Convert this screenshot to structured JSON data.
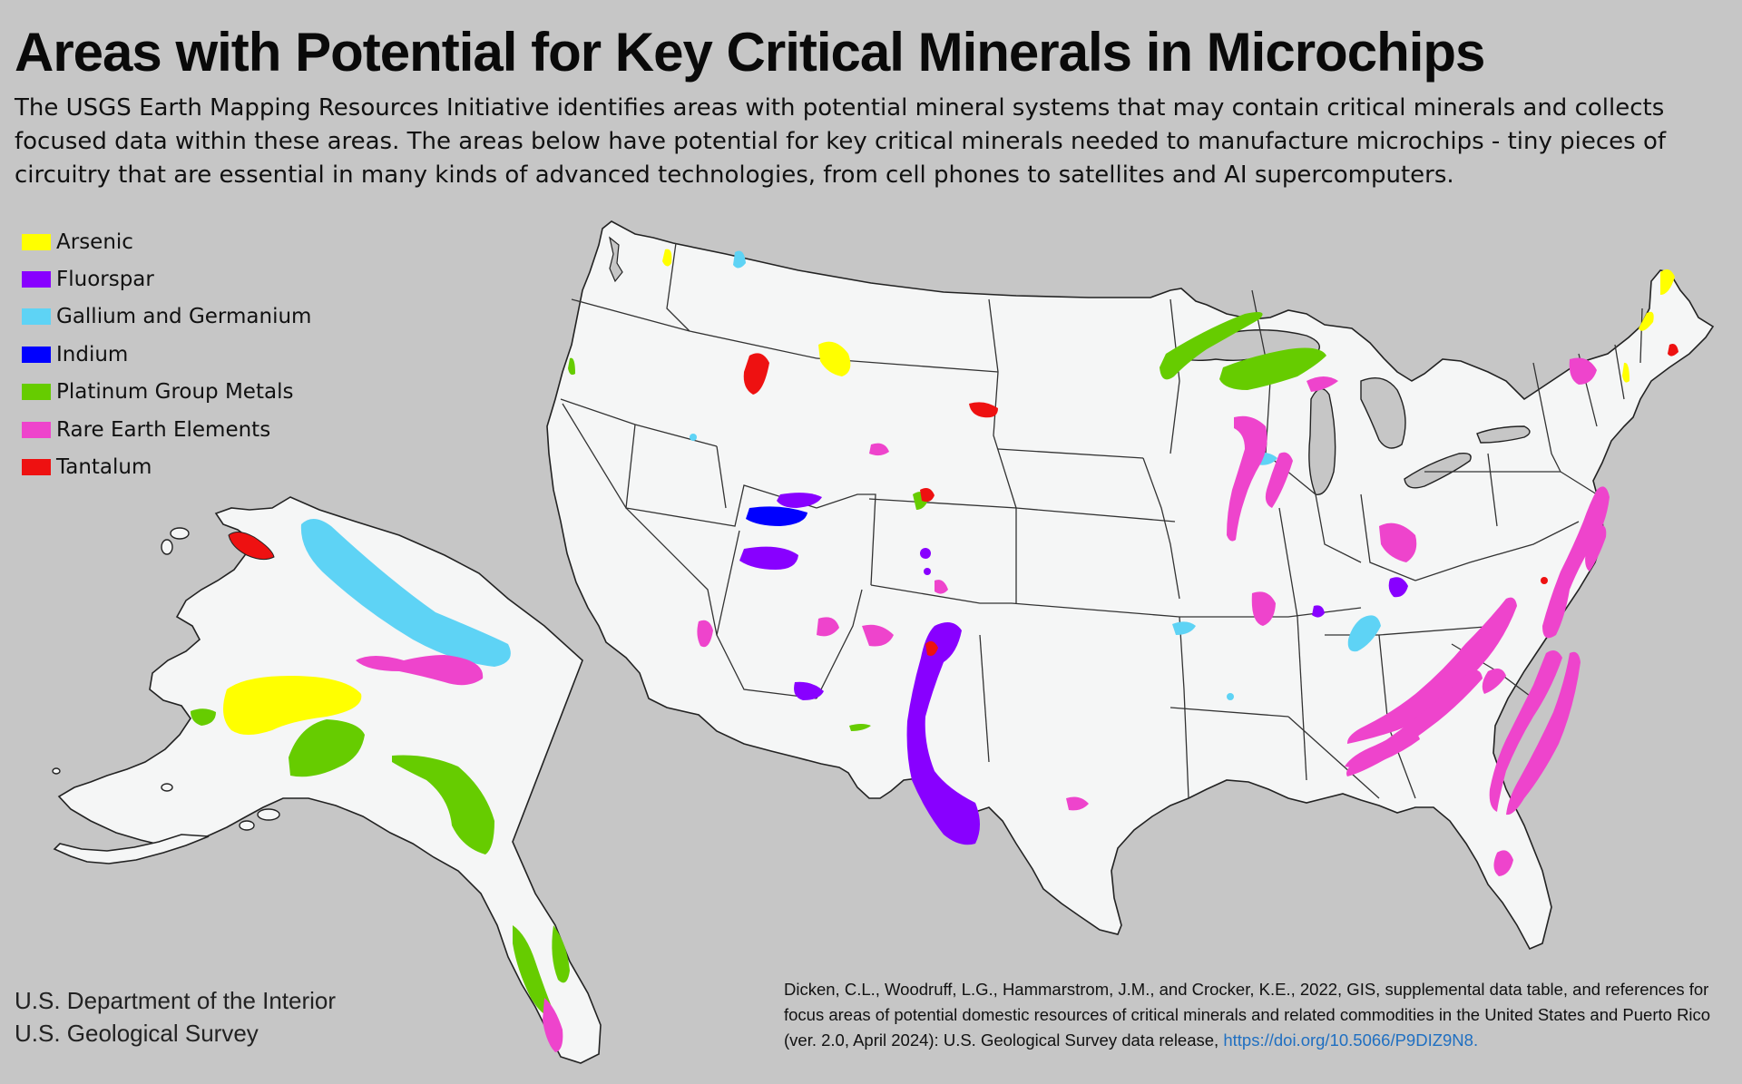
{
  "title": "Areas with Potential for Key Critical Minerals in Microchips",
  "subtitle": "The USGS Earth Mapping Resources Initiative identifies areas with potential mineral systems that may contain critical minerals and collects focused data within these areas. The areas below have potential for key critical minerals needed to manufacture microchips - tiny pieces of circuitry that are essential in many kinds of advanced technologies, from cell phones to satellites and AI supercomputers.",
  "legend": [
    {
      "label": "Arsenic",
      "color": "#ffff00"
    },
    {
      "label": "Fluorspar",
      "color": "#8800ff"
    },
    {
      "label": "Gallium and Germanium",
      "color": "#5ed3f5"
    },
    {
      "label": "Indium",
      "color": "#0000ff"
    },
    {
      "label": "Platinum Group Metals",
      "color": "#66cc00"
    },
    {
      "label": "Rare Earth Elements",
      "color": "#ee44cc"
    },
    {
      "label": "Tantalum",
      "color": "#ee1111"
    }
  ],
  "colors": {
    "background": "#c6c6c6",
    "land": "#f5f6f6",
    "borders": "#222222",
    "link": "#1f6fc1"
  },
  "agency": {
    "line1": "U.S. Department of the Interior",
    "line2": "U.S. Geological Survey"
  },
  "citation": {
    "text": "Dicken, C.L., Woodruff, L.G., Hammarstrom, J.M., and Crocker, K.E., 2022, GIS, supplemental data table, and references for focus areas of potential domestic resources of critical minerals and related commodities in the United States and Puerto Rico (ver. 2.0, April 2024): U.S. Geological Survey data release,",
    "link": "https://doi.org/10.5066/P9DIZ9N8."
  }
}
